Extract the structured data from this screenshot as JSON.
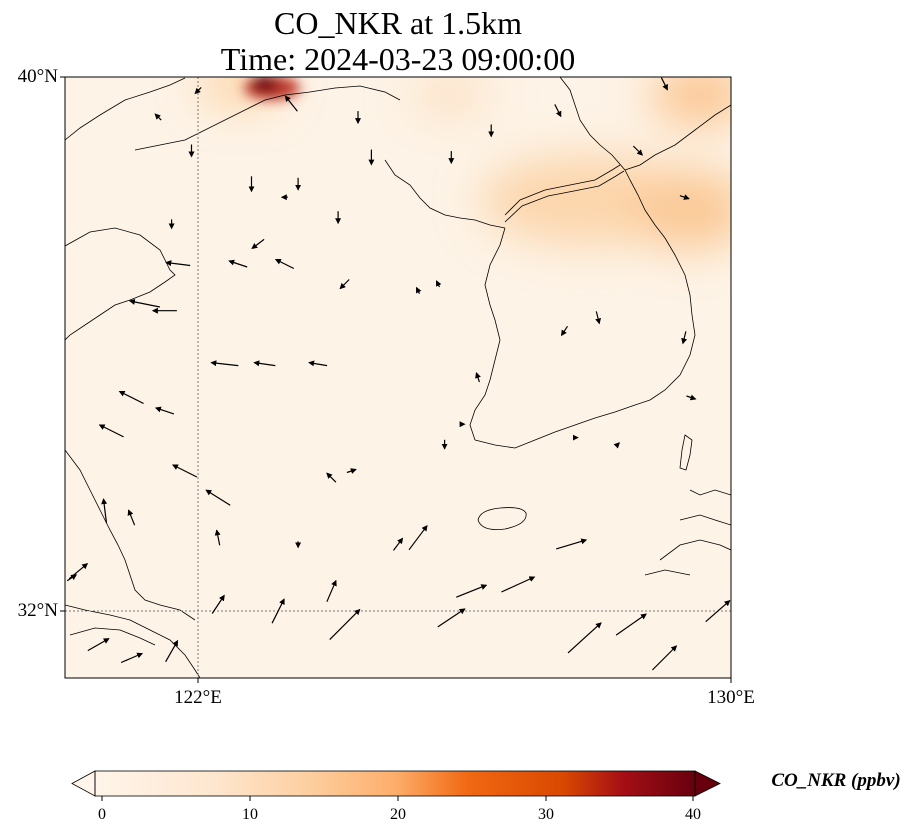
{
  "title_line1": "CO_NKR at 1.5km",
  "title_line2": "Time: 2024-03-23 09:00:00",
  "lat_labels": [
    "40°N",
    "32°N"
  ],
  "lon_labels": [
    "122°E",
    "130°E"
  ],
  "colorbar": {
    "label": "CO_NKR (ppbv)",
    "ticks": [
      "0",
      "10",
      "20",
      "30",
      "40"
    ],
    "colors": [
      "#fff5eb",
      "#fdd9b4",
      "#fda762",
      "#e6550d",
      "#a50f15",
      "#67000d"
    ],
    "min": 0,
    "max": 40
  },
  "map": {
    "lon_range": [
      120,
      130
    ],
    "lat_range": [
      31,
      40
    ],
    "gridlines": {
      "lon": 122,
      "lat": 32
    },
    "hotspots": [
      {
        "lon": 121.8,
        "lat": 40.0,
        "value": 40
      },
      {
        "lon": 125.4,
        "lat": 38.4,
        "value": 14
      },
      {
        "lon": 128.8,
        "lat": 38.7,
        "value": 12
      },
      {
        "lon": 129.6,
        "lat": 39.9,
        "value": 12
      },
      {
        "lon": 126.2,
        "lat": 39.9,
        "value": 10
      }
    ],
    "wind_vectors": [
      [
        121.7,
        37.2,
        -0.8,
        0.1
      ],
      [
        122.6,
        37.2,
        -0.6,
        0.2
      ],
      [
        123.3,
        37.2,
        -0.6,
        0.3
      ],
      [
        124.2,
        36.9,
        -0.3,
        -0.3
      ],
      [
        121.2,
        36.6,
        -1.0,
        0.2
      ],
      [
        121.5,
        36.5,
        -0.8,
        0.0
      ],
      [
        122.4,
        35.7,
        -0.9,
        0.1
      ],
      [
        123.0,
        35.7,
        -0.7,
        0.1
      ],
      [
        123.8,
        35.7,
        -0.6,
        0.1
      ],
      [
        121.0,
        35.2,
        -0.8,
        0.4
      ],
      [
        121.5,
        35.0,
        -0.6,
        0.2
      ],
      [
        120.7,
        34.7,
        -0.8,
        0.4
      ],
      [
        121.8,
        34.1,
        -0.8,
        0.4
      ],
      [
        122.3,
        33.7,
        -0.8,
        0.5
      ],
      [
        121.0,
        33.4,
        -0.2,
        0.5
      ],
      [
        120.6,
        33.5,
        -0.1,
        0.8
      ],
      [
        122.3,
        33.1,
        -0.1,
        0.5
      ],
      [
        123.5,
        33.0,
        0.0,
        -0.2
      ],
      [
        124.0,
        34.0,
        -0.3,
        0.3
      ],
      [
        125.0,
        33.0,
        0.3,
        0.4
      ],
      [
        124.2,
        31.8,
        1.0,
        1.0
      ],
      [
        125.8,
        31.9,
        0.9,
        0.6
      ],
      [
        126.8,
        32.4,
        1.1,
        0.5
      ],
      [
        127.6,
        33.0,
        1.0,
        0.3
      ],
      [
        126.1,
        32.3,
        1.0,
        0.4
      ],
      [
        125.3,
        33.1,
        0.6,
        0.8
      ],
      [
        127.8,
        31.6,
        1.1,
        1.0
      ],
      [
        128.5,
        31.8,
        1.0,
        0.7
      ],
      [
        129.0,
        31.3,
        0.8,
        0.8
      ],
      [
        129.8,
        32.0,
        0.8,
        0.7
      ],
      [
        121.6,
        31.4,
        0.4,
        0.7
      ],
      [
        122.3,
        32.1,
        0.4,
        0.6
      ],
      [
        123.2,
        32.0,
        0.4,
        0.8
      ],
      [
        124.0,
        32.3,
        0.3,
        0.7
      ],
      [
        120.5,
        31.5,
        0.7,
        0.4
      ],
      [
        121.0,
        31.3,
        0.7,
        0.3
      ],
      [
        120.2,
        32.6,
        0.6,
        0.5
      ],
      [
        120.1,
        32.5,
        0.3,
        0.2
      ],
      [
        121.6,
        37.8,
        0.0,
        -0.3
      ],
      [
        122.9,
        37.5,
        -0.4,
        -0.3
      ],
      [
        124.1,
        37.9,
        0.0,
        -0.4
      ],
      [
        124.6,
        38.8,
        0.0,
        -0.5
      ],
      [
        124.4,
        39.4,
        0.0,
        -0.4
      ],
      [
        125.8,
        38.8,
        0.0,
        -0.4
      ],
      [
        126.4,
        39.2,
        0.0,
        -0.4
      ],
      [
        127.4,
        39.5,
        0.2,
        -0.4
      ],
      [
        129.0,
        39.9,
        0.2,
        -0.4
      ],
      [
        128.6,
        38.9,
        0.3,
        -0.3
      ],
      [
        129.3,
        38.2,
        0.3,
        -0.1
      ],
      [
        129.3,
        36.1,
        -0.1,
        -0.4
      ],
      [
        128.0,
        36.4,
        0.1,
        -0.4
      ],
      [
        127.5,
        36.2,
        -0.2,
        -0.3
      ],
      [
        125.6,
        36.9,
        -0.1,
        0.2
      ],
      [
        125.3,
        36.8,
        -0.1,
        0.2
      ],
      [
        126.0,
        34.8,
        0.0,
        0.0
      ],
      [
        124.3,
        34.1,
        0.3,
        0.1
      ],
      [
        125.7,
        34.5,
        0.0,
        -0.3
      ],
      [
        126.2,
        35.5,
        -0.1,
        0.3
      ],
      [
        127.7,
        34.6,
        0.0,
        0.0
      ],
      [
        128.3,
        34.5,
        0.1,
        0.1
      ],
      [
        129.4,
        35.2,
        0.3,
        -0.1
      ],
      [
        121.9,
        38.9,
        0.0,
        -0.4
      ],
      [
        122.0,
        39.8,
        -0.2,
        -0.2
      ],
      [
        121.4,
        39.4,
        -0.2,
        0.2
      ],
      [
        123.4,
        39.6,
        -0.4,
        0.5
      ],
      [
        122.8,
        38.4,
        0.0,
        -0.5
      ],
      [
        123.3,
        38.2,
        -0.2,
        0.0
      ],
      [
        123.5,
        38.4,
        0.0,
        -0.4
      ]
    ]
  }
}
